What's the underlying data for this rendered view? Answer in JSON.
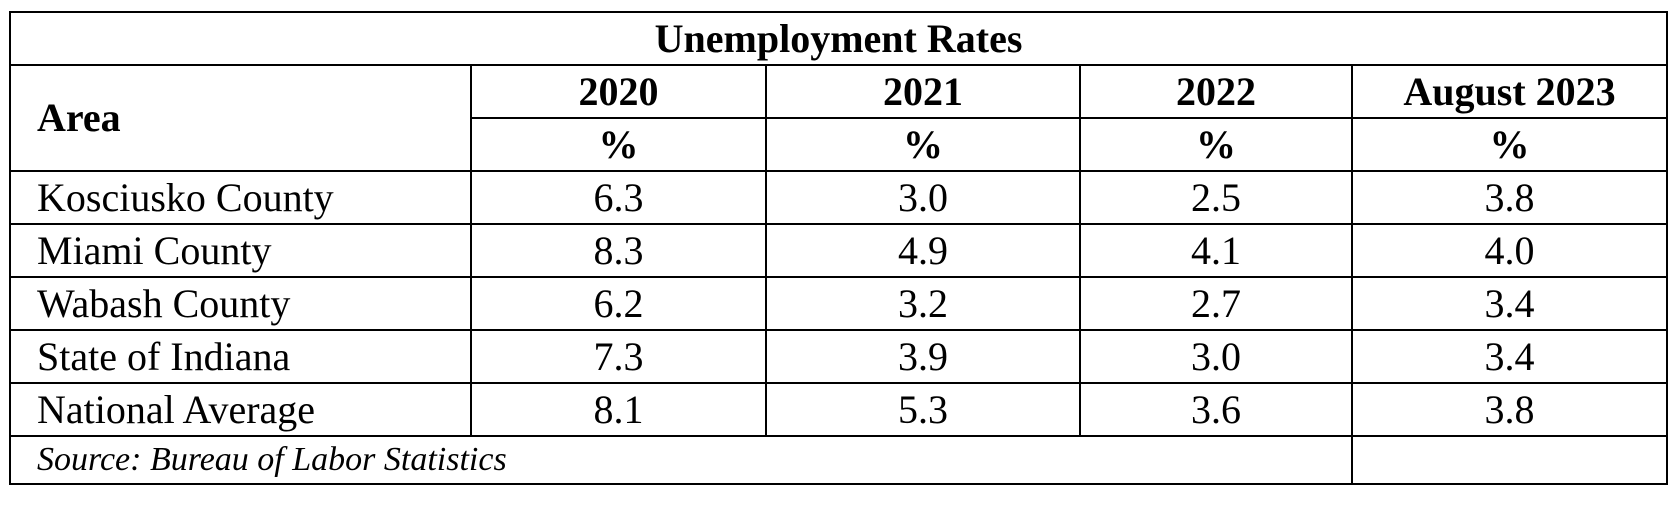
{
  "table": {
    "title": "Unemployment Rates",
    "area_header": "Area",
    "columns": [
      {
        "year": "2020",
        "unit": "%"
      },
      {
        "year": "2021",
        "unit": "%"
      },
      {
        "year": "2022",
        "unit": "%"
      },
      {
        "year": "August 2023",
        "unit": "%"
      }
    ],
    "rows": [
      {
        "area": "Kosciusko County",
        "values": [
          "6.3",
          "3.0",
          "2.5",
          "3.8"
        ]
      },
      {
        "area": "Miami County",
        "values": [
          "8.3",
          "4.9",
          "4.1",
          "4.0"
        ]
      },
      {
        "area": "Wabash County",
        "values": [
          "6.2",
          "3.2",
          "2.7",
          "3.4"
        ]
      },
      {
        "area": "State of Indiana",
        "values": [
          "7.3",
          "3.9",
          "3.0",
          "3.4"
        ]
      },
      {
        "area": "National Average",
        "values": [
          "8.1",
          "5.3",
          "3.6",
          "3.8"
        ]
      }
    ],
    "source": "Source: Bureau of Labor Statistics"
  }
}
